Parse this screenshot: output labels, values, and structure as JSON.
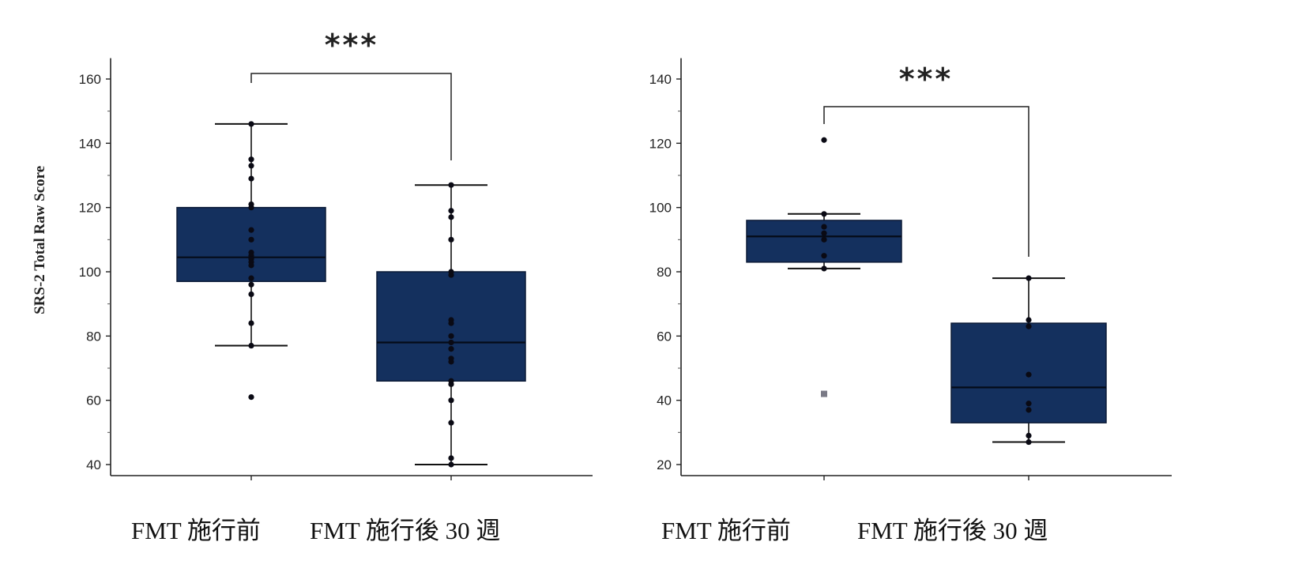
{
  "chart_data": [
    {
      "type": "box",
      "ylabel": "SRS-2 Total Raw Score",
      "ylim": [
        40,
        165
      ],
      "yticks": [
        40,
        60,
        80,
        100,
        120,
        140,
        160
      ],
      "significance": "***",
      "box_color": "#14305e",
      "groups": [
        {
          "category": "FMT 施行前",
          "whisker_low": 77,
          "q1": 97,
          "median": 104.5,
          "q3": 120,
          "whisker_high": 146,
          "points": [
            146,
            135,
            133,
            129,
            121,
            120,
            113,
            110,
            106,
            105,
            104,
            104,
            103,
            102,
            98,
            96,
            93,
            84,
            77,
            61
          ]
        },
        {
          "category": "FMT 施行後 30 週",
          "whisker_low": 40,
          "q1": 66,
          "median": 78,
          "q3": 100,
          "whisker_high": 127,
          "points": [
            127,
            119,
            117,
            110,
            100,
            99,
            85,
            84,
            80,
            78,
            76,
            73,
            72,
            66,
            65,
            60,
            53,
            42,
            40
          ]
        }
      ]
    },
    {
      "type": "box",
      "ylabel": "",
      "ylim": [
        20,
        145
      ],
      "yticks": [
        20,
        40,
        60,
        80,
        100,
        120,
        140
      ],
      "significance": "***",
      "box_color": "#14305e",
      "groups": [
        {
          "category": "FMT 施行前",
          "whisker_low": 81,
          "q1": 83,
          "median": 91,
          "q3": 96,
          "whisker_high": 98,
          "points": [
            121,
            98,
            94,
            92,
            90,
            85,
            81
          ],
          "outliers": [
            42
          ]
        },
        {
          "category": "FMT 施行後 30 週",
          "whisker_low": 27,
          "q1": 33,
          "median": 44,
          "q3": 64,
          "whisker_high": 78,
          "points": [
            78,
            65,
            63,
            48,
            39,
            37,
            29,
            27
          ]
        }
      ]
    }
  ]
}
